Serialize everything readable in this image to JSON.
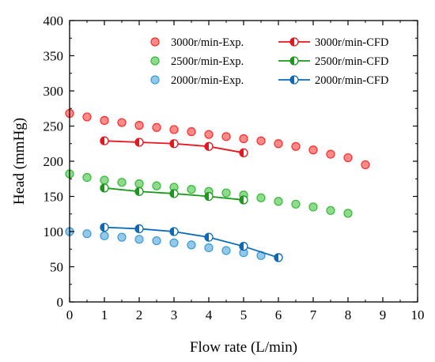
{
  "chart_data": {
    "type": "scatter",
    "xlabel": "Flow rate (L/min)",
    "ylabel": "Head (mmHg)",
    "xlim": [
      0,
      10
    ],
    "ylim": [
      0,
      400
    ],
    "xticks": [
      "0",
      "1",
      "2",
      "3",
      "4",
      "5",
      "6",
      "7",
      "8",
      "9",
      "10"
    ],
    "yticks": [
      "0",
      "50",
      "100",
      "150",
      "200",
      "250",
      "300",
      "350",
      "400"
    ],
    "grid": false,
    "legend_position": "top-right",
    "series": [
      {
        "name": "3000r/min-Exp.",
        "kind": "exp",
        "color": "#ff2a2a",
        "x": [
          0,
          0.5,
          1,
          1.5,
          2,
          2.5,
          3,
          3.5,
          4,
          4.5,
          5,
          5.5,
          6,
          6.5,
          7,
          7.5,
          8,
          8.5
        ],
        "y": [
          268,
          263,
          258,
          255,
          251,
          248,
          245,
          242,
          238,
          235,
          232,
          229,
          225,
          221,
          216,
          210,
          205,
          195
        ]
      },
      {
        "name": "2500r/min-Exp.",
        "kind": "exp",
        "color": "#33bb33",
        "x": [
          0,
          0.5,
          1,
          1.5,
          2,
          2.5,
          3,
          3.5,
          4,
          4.5,
          5,
          5.5,
          6,
          6.5,
          7,
          7.5,
          8
        ],
        "y": [
          182,
          177,
          173,
          170,
          168,
          165,
          163,
          160,
          157,
          155,
          152,
          148,
          143,
          139,
          135,
          130,
          126
        ]
      },
      {
        "name": "2000r/min-Exp.",
        "kind": "exp",
        "color": "#3a9bd5",
        "x": [
          0,
          0.5,
          1,
          1.5,
          2,
          2.5,
          3,
          3.5,
          4,
          4.5,
          5,
          5.5,
          6
        ],
        "y": [
          100,
          97,
          94,
          92,
          89,
          87,
          84,
          81,
          77,
          73,
          70,
          66,
          63
        ]
      },
      {
        "name": "3000r/min-CFD",
        "kind": "cfd",
        "color": "#e8141e",
        "x": [
          1,
          2,
          3,
          4,
          5
        ],
        "y": [
          229,
          227,
          225,
          221,
          212
        ]
      },
      {
        "name": "2500r/min-CFD",
        "kind": "cfd",
        "color": "#1a9a1a",
        "x": [
          1,
          2,
          3,
          4,
          5
        ],
        "y": [
          162,
          157,
          154,
          150,
          145
        ]
      },
      {
        "name": "2000r/min-CFD",
        "kind": "cfd",
        "color": "#0a6ab8",
        "x": [
          1,
          2,
          3,
          4,
          5,
          6
        ],
        "y": [
          106,
          104,
          100,
          92,
          79,
          63
        ]
      }
    ]
  }
}
